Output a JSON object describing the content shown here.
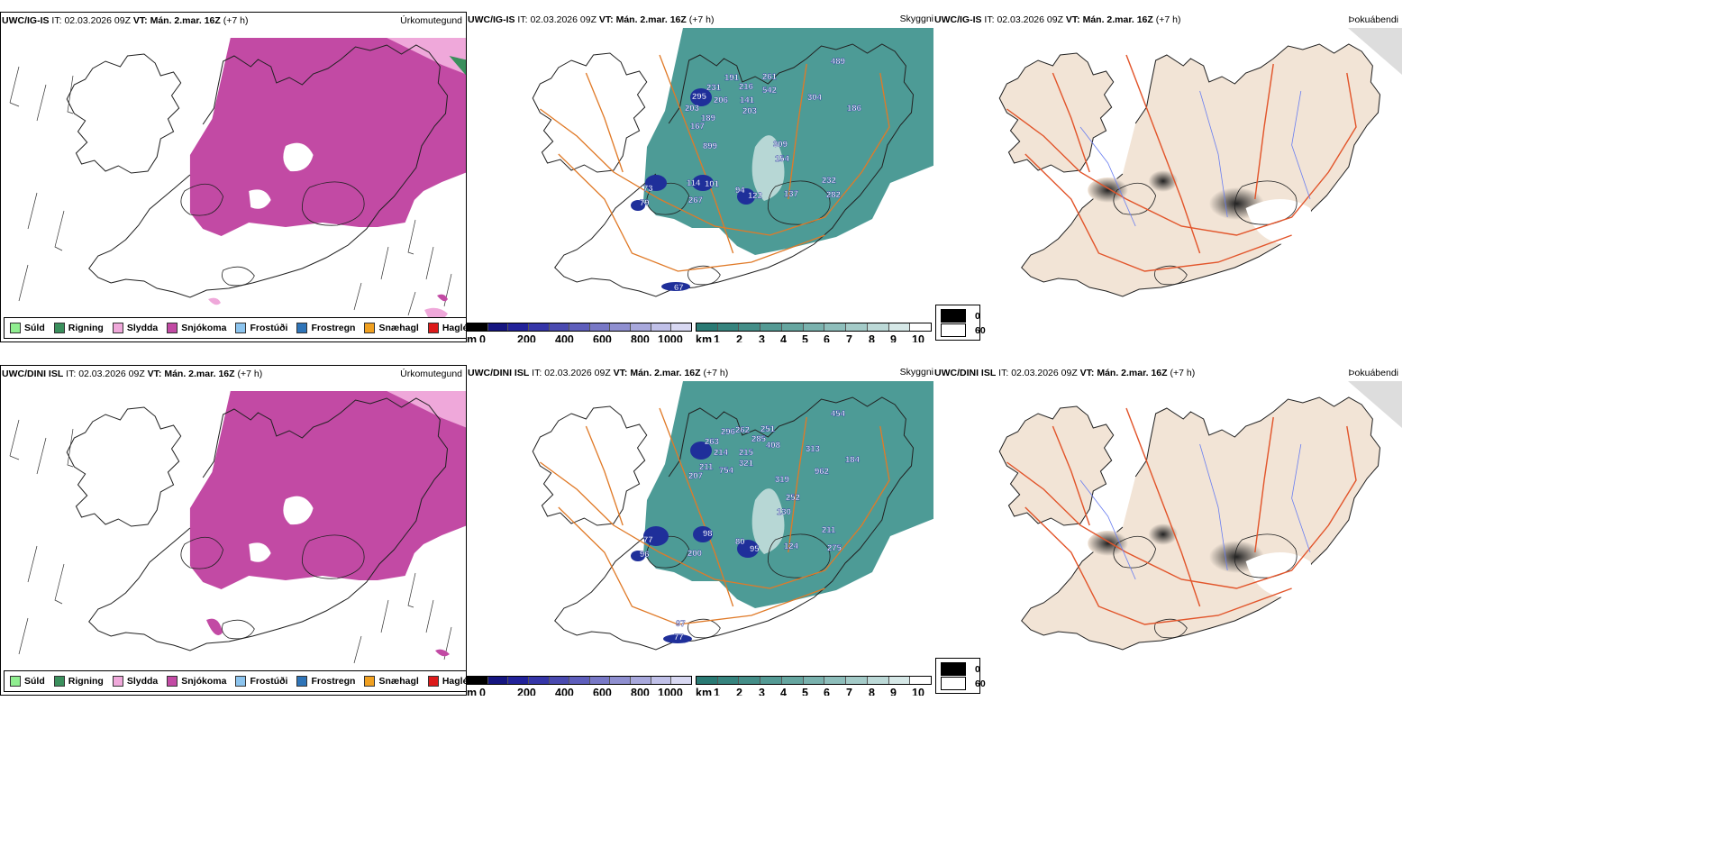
{
  "colors": {
    "snow": "#c24aa4",
    "sleet": "#efa8da",
    "rain": "#3a8f5c",
    "drizzle": "#90ee90",
    "ceiling": "#2e8a84",
    "ceiling_low": "#1f2f9a",
    "road": "#e07a28",
    "land_fog": "#f2e4d6",
    "fog_road": "#e2552b",
    "river": "#6b7ff0"
  },
  "rows": [
    {
      "model": "UWC/IG-IS",
      "it_label": "IT:",
      "it_value": "02.03.2026 09Z",
      "vt_label": "VT:",
      "vt_value": "Mán. 2.mar. 16Z",
      "offset": "(+7 h)",
      "values": [
        "489",
        "261",
        "191",
        "231",
        "216",
        "542",
        "295",
        "206",
        "141",
        "304",
        "203",
        "189",
        "203",
        "186",
        "167",
        "899",
        "309",
        "154",
        "114",
        "101",
        "232",
        "73",
        "94",
        "122",
        "137",
        "282",
        "267",
        "79",
        "67"
      ]
    },
    {
      "model": "UWC/DINI ISL",
      "it_label": "IT:",
      "it_value": "02.03.2026 09Z",
      "vt_label": "VT:",
      "vt_value": "Mán. 2.mar. 16Z",
      "offset": "(+7 h)",
      "values": [
        "454",
        "251",
        "296",
        "262",
        "285",
        "263",
        "408",
        "214",
        "215",
        "211",
        "754",
        "321",
        "313",
        "184",
        "207",
        "962",
        "319",
        "252",
        "130",
        "98",
        "211",
        "77",
        "80",
        "95",
        "124",
        "275",
        "96",
        "200",
        "97",
        "77"
      ]
    }
  ],
  "panel_titles": {
    "precip": "Úrkomutegund",
    "ceiling": "Skyggni",
    "fog": "Þokuábendi"
  },
  "precip_legend": [
    {
      "label": "Súld",
      "color": "#90ee90"
    },
    {
      "label": "Rigning",
      "color": "#3a8f5c"
    },
    {
      "label": "Slydda",
      "color": "#efa8da"
    },
    {
      "label": "Snjókoma",
      "color": "#c24aa4"
    },
    {
      "label": "Frostúði",
      "color": "#8cc4ee"
    },
    {
      "label": "Frostregn",
      "color": "#2e74b8"
    },
    {
      "label": "Snæhagl",
      "color": "#f0a020"
    },
    {
      "label": "Haglél",
      "color": "#dd1a1a"
    }
  ],
  "height_bar": {
    "unit": "m",
    "ticks": [
      "0",
      "200",
      "400",
      "600",
      "800",
      "1000"
    ],
    "colors": [
      "#000000",
      "#151580",
      "#22229a",
      "#3535a8",
      "#4a4ab0",
      "#5e5ebc",
      "#7878c6",
      "#8f8fd0",
      "#a8a8dc",
      "#c0c0e8",
      "#d8d8f2"
    ]
  },
  "vis_bar": {
    "unit": "km",
    "ticks": [
      "1",
      "2",
      "3",
      "4",
      "5",
      "6",
      "7",
      "8",
      "9",
      "10"
    ],
    "colors": [
      "#2a7a74",
      "#36847e",
      "#448e88",
      "#549a94",
      "#66a6a0",
      "#7ab2ae",
      "#8ebebb",
      "#a4cbc8",
      "#bcd9d7",
      "#d6e8e7",
      "#ffffff"
    ]
  },
  "fog_legend": [
    {
      "label": "0",
      "color": "#000000"
    },
    {
      "label": "60",
      "color": "#ffffff"
    }
  ]
}
